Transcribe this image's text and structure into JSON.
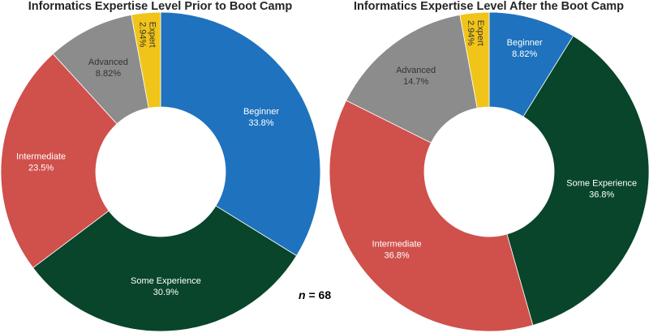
{
  "chart_data": [
    {
      "type": "pie",
      "donut": true,
      "title": "Informatics Expertise Level Prior to Boot Camp",
      "direction": "clockwise",
      "start": "top",
      "slices": [
        {
          "label": "Beginner",
          "value": 33.8,
          "value_text": "33.8%",
          "color": "#1f72bd",
          "text_color": "#ffffff"
        },
        {
          "label": "Some Experience",
          "value": 30.9,
          "value_text": "30.9%",
          "color": "#08452a",
          "text_color": "#ffffff"
        },
        {
          "label": "Intermediate",
          "value": 23.5,
          "value_text": "23.5%",
          "color": "#d0504b",
          "text_color": "#ffffff"
        },
        {
          "label": "Advanced",
          "value": 8.82,
          "value_text": "8.82%",
          "color": "#8c8c8c",
          "text_color": "#333333"
        },
        {
          "label": "Expert",
          "value": 2.94,
          "value_text": "2.94%",
          "color": "#f0c419",
          "text_color": "#333333"
        }
      ]
    },
    {
      "type": "pie",
      "donut": true,
      "title": "Informatics Expertise Level After the Boot Camp",
      "direction": "clockwise",
      "start": "top",
      "slices": [
        {
          "label": "Beginner",
          "value": 8.82,
          "value_text": "8.82%",
          "color": "#1f72bd",
          "text_color": "#ffffff"
        },
        {
          "label": "Some Experience",
          "value": 36.8,
          "value_text": "36.8%",
          "color": "#08452a",
          "text_color": "#ffffff"
        },
        {
          "label": "Intermediate",
          "value": 36.8,
          "value_text": "36.8%",
          "color": "#d0504b",
          "text_color": "#ffffff"
        },
        {
          "label": "Advanced",
          "value": 14.7,
          "value_text": "14.7%",
          "color": "#8c8c8c",
          "text_color": "#333333"
        },
        {
          "label": "Expert",
          "value": 2.94,
          "value_text": "2.94%",
          "color": "#f0c419",
          "text_color": "#333333"
        }
      ]
    }
  ],
  "sample_size": {
    "var": "n",
    "eq": " = ",
    "value": "68"
  }
}
